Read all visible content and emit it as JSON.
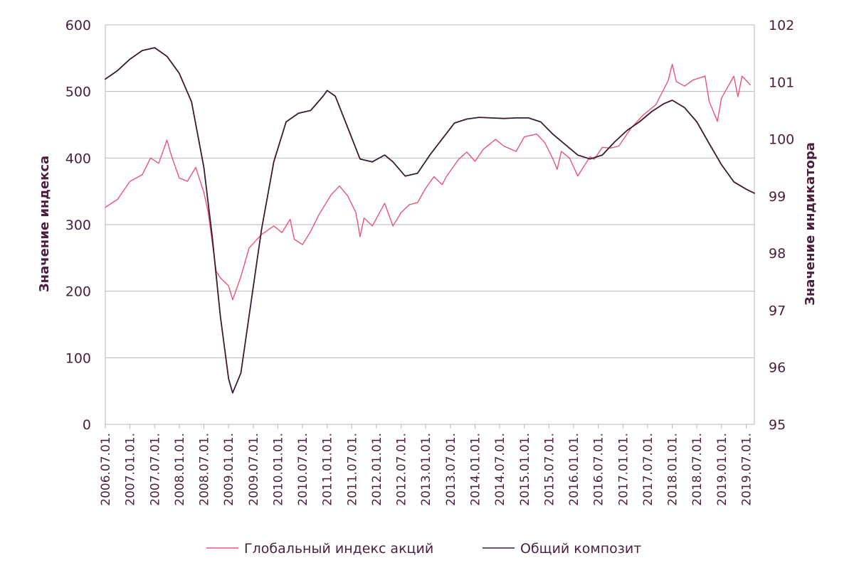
{
  "chart_data": {
    "type": "line",
    "y_left": {
      "label": "Значение индекса",
      "range": [
        0,
        600
      ],
      "ticks": [
        0,
        100,
        200,
        300,
        400,
        500,
        600
      ]
    },
    "y_right": {
      "label": "Значение индикатора",
      "range": [
        95,
        102
      ],
      "ticks": [
        95,
        96,
        97,
        98,
        99,
        100,
        101,
        102
      ]
    },
    "x_range": [
      "2006-07",
      "2019-09"
    ],
    "x_ticks": [
      {
        "label": "2006.07.01.",
        "date": "2006-07"
      },
      {
        "label": "2007.01.01.",
        "date": "2007-01"
      },
      {
        "label": "2007.07.01.",
        "date": "2007-07"
      },
      {
        "label": "2008.01.01.",
        "date": "2008-01"
      },
      {
        "label": "2008.07.01.",
        "date": "2008-07"
      },
      {
        "label": "2009.01.01.",
        "date": "2009-01"
      },
      {
        "label": "2009.07.01.",
        "date": "2009-07"
      },
      {
        "label": "2010.01.01.",
        "date": "2010-01"
      },
      {
        "label": "2010.07.01.",
        "date": "2010-07"
      },
      {
        "label": "2011.01.01.",
        "date": "2011-01"
      },
      {
        "label": "2011.07.01.",
        "date": "2011-07"
      },
      {
        "label": "2012.01.01.",
        "date": "2012-01"
      },
      {
        "label": "2012.07.01.",
        "date": "2012-07"
      },
      {
        "label": "2013.01.01.",
        "date": "2013-01"
      },
      {
        "label": "2013.07.01.",
        "date": "2013-07"
      },
      {
        "label": "2014.01.01.",
        "date": "2014-01"
      },
      {
        "label": "2014.07.01.",
        "date": "2014-07"
      },
      {
        "label": "2015.01.01.",
        "date": "2015-01"
      },
      {
        "label": "2015.07.01.",
        "date": "2015-07"
      },
      {
        "label": "2016.01.01.",
        "date": "2016-01"
      },
      {
        "label": "2016.07.01.",
        "date": "2016-07"
      },
      {
        "label": "2017.01.01.",
        "date": "2017-01"
      },
      {
        "label": "2017.07.01.",
        "date": "2017-07"
      },
      {
        "label": "2018.01.01.",
        "date": "2018-01"
      },
      {
        "label": "2018.07.01.",
        "date": "2018-07"
      },
      {
        "label": "2019.01.01.",
        "date": "2019-01"
      },
      {
        "label": "2019.07.01.",
        "date": "2019-07"
      }
    ],
    "grid": true,
    "legend_position": "bottom",
    "series": [
      {
        "name": "Глобальный индекс акций",
        "axis": "left",
        "color": "#e8557a",
        "points": [
          [
            "2006-07",
            326
          ],
          [
            "2006-10",
            338
          ],
          [
            "2007-01",
            365
          ],
          [
            "2007-04",
            375
          ],
          [
            "2007-06",
            400
          ],
          [
            "2007-08",
            392
          ],
          [
            "2007-10",
            427
          ],
          [
            "2007-11",
            405
          ],
          [
            "2008-01",
            370
          ],
          [
            "2008-03",
            365
          ],
          [
            "2008-05",
            386
          ],
          [
            "2008-07",
            348
          ],
          [
            "2008-08",
            320
          ],
          [
            "2008-10",
            230
          ],
          [
            "2008-11",
            220
          ],
          [
            "2009-01",
            208
          ],
          [
            "2009-02",
            187
          ],
          [
            "2009-04",
            222
          ],
          [
            "2009-06",
            265
          ],
          [
            "2009-09",
            285
          ],
          [
            "2009-12",
            298
          ],
          [
            "2010-02",
            288
          ],
          [
            "2010-04",
            308
          ],
          [
            "2010-05",
            278
          ],
          [
            "2010-07",
            270
          ],
          [
            "2010-09",
            290
          ],
          [
            "2010-11",
            315
          ],
          [
            "2011-02",
            345
          ],
          [
            "2011-04",
            358
          ],
          [
            "2011-06",
            343
          ],
          [
            "2011-08",
            318
          ],
          [
            "2011-09",
            282
          ],
          [
            "2011-10",
            310
          ],
          [
            "2011-12",
            298
          ],
          [
            "2012-03",
            332
          ],
          [
            "2012-05",
            298
          ],
          [
            "2012-07",
            318
          ],
          [
            "2012-09",
            330
          ],
          [
            "2012-11",
            333
          ],
          [
            "2013-01",
            355
          ],
          [
            "2013-03",
            372
          ],
          [
            "2013-05",
            360
          ],
          [
            "2013-06",
            372
          ],
          [
            "2013-09",
            398
          ],
          [
            "2013-11",
            409
          ],
          [
            "2014-01",
            395
          ],
          [
            "2014-03",
            413
          ],
          [
            "2014-06",
            428
          ],
          [
            "2014-08",
            418
          ],
          [
            "2014-11",
            410
          ],
          [
            "2015-01",
            432
          ],
          [
            "2015-04",
            436
          ],
          [
            "2015-06",
            423
          ],
          [
            "2015-08",
            398
          ],
          [
            "2015-09",
            383
          ],
          [
            "2015-10",
            410
          ],
          [
            "2015-12",
            400
          ],
          [
            "2016-02",
            373
          ],
          [
            "2016-05",
            402
          ],
          [
            "2016-06",
            398
          ],
          [
            "2016-08",
            416
          ],
          [
            "2016-10",
            415
          ],
          [
            "2016-12",
            418
          ],
          [
            "2017-03",
            445
          ],
          [
            "2017-06",
            465
          ],
          [
            "2017-09",
            480
          ],
          [
            "2017-12",
            516
          ],
          [
            "2018-01",
            541
          ],
          [
            "2018-02",
            515
          ],
          [
            "2018-04",
            508
          ],
          [
            "2018-06",
            517
          ],
          [
            "2018-09",
            523
          ],
          [
            "2018-10",
            485
          ],
          [
            "2018-12",
            455
          ],
          [
            "2019-01",
            490
          ],
          [
            "2019-04",
            523
          ],
          [
            "2019-05",
            492
          ],
          [
            "2019-06",
            523
          ],
          [
            "2019-08",
            510
          ]
        ]
      },
      {
        "name": "Общий композит",
        "axis": "right",
        "color": "#3a1a33",
        "points": [
          [
            "2006-07",
            101.05
          ],
          [
            "2006-10",
            101.2
          ],
          [
            "2007-01",
            101.4
          ],
          [
            "2007-04",
            101.55
          ],
          [
            "2007-07",
            101.6
          ],
          [
            "2007-10",
            101.45
          ],
          [
            "2008-01",
            101.15
          ],
          [
            "2008-04",
            100.65
          ],
          [
            "2008-07",
            99.5
          ],
          [
            "2008-09",
            98.3
          ],
          [
            "2008-11",
            96.9
          ],
          [
            "2009-01",
            95.8
          ],
          [
            "2009-02",
            95.55
          ],
          [
            "2009-04",
            95.9
          ],
          [
            "2009-06",
            96.9
          ],
          [
            "2009-09",
            98.4
          ],
          [
            "2009-12",
            99.6
          ],
          [
            "2010-03",
            100.3
          ],
          [
            "2010-06",
            100.45
          ],
          [
            "2010-09",
            100.5
          ],
          [
            "2010-12",
            100.75
          ],
          [
            "2011-01",
            100.85
          ],
          [
            "2011-03",
            100.75
          ],
          [
            "2011-06",
            100.2
          ],
          [
            "2011-09",
            99.65
          ],
          [
            "2011-12",
            99.6
          ],
          [
            "2012-03",
            99.72
          ],
          [
            "2012-05",
            99.6
          ],
          [
            "2012-08",
            99.35
          ],
          [
            "2012-11",
            99.4
          ],
          [
            "2013-02",
            99.72
          ],
          [
            "2013-05",
            100.0
          ],
          [
            "2013-08",
            100.28
          ],
          [
            "2013-11",
            100.35
          ],
          [
            "2014-02",
            100.38
          ],
          [
            "2014-05",
            100.37
          ],
          [
            "2014-08",
            100.36
          ],
          [
            "2014-11",
            100.37
          ],
          [
            "2015-02",
            100.37
          ],
          [
            "2015-05",
            100.3
          ],
          [
            "2015-08",
            100.08
          ],
          [
            "2015-11",
            99.9
          ],
          [
            "2016-02",
            99.72
          ],
          [
            "2016-05",
            99.65
          ],
          [
            "2016-08",
            99.72
          ],
          [
            "2016-11",
            99.95
          ],
          [
            "2017-02",
            100.15
          ],
          [
            "2017-05",
            100.3
          ],
          [
            "2017-08",
            100.48
          ],
          [
            "2017-11",
            100.62
          ],
          [
            "2018-01",
            100.68
          ],
          [
            "2018-04",
            100.55
          ],
          [
            "2018-07",
            100.3
          ],
          [
            "2018-10",
            99.92
          ],
          [
            "2019-01",
            99.55
          ],
          [
            "2019-04",
            99.25
          ],
          [
            "2019-07",
            99.12
          ],
          [
            "2019-09",
            99.05
          ]
        ]
      }
    ]
  }
}
